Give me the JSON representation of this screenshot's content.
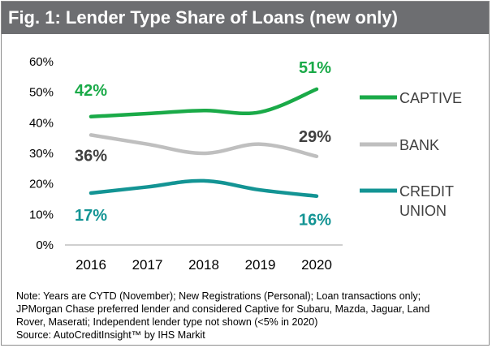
{
  "title": "Fig. 1: Lender Type Share of Loans (new only)",
  "colors": {
    "captive": "#1aaa48",
    "bank": "#bfbfbf",
    "credit_union": "#139494",
    "title_bg": "#6d6e71"
  },
  "chart_data": {
    "type": "line",
    "title": "Fig. 1: Lender Type Share of Loans (new only)",
    "x": [
      "2016",
      "2017",
      "2018",
      "2019",
      "2020"
    ],
    "ylim": [
      0,
      60
    ],
    "yticks": [
      "0%",
      "10%",
      "20%",
      "30%",
      "40%",
      "50%",
      "60%"
    ],
    "grid": false,
    "legend": "right",
    "series": [
      {
        "name": "CAPTIVE",
        "key": "captive",
        "values": [
          42,
          43,
          44,
          43.5,
          51
        ],
        "labels": [
          "42%",
          "51%"
        ]
      },
      {
        "name": "BANK",
        "key": "bank",
        "values": [
          36,
          33,
          30,
          33,
          29
        ],
        "labels": [
          "36%",
          "29%"
        ]
      },
      {
        "name": "CREDIT UNION",
        "key": "credit_union",
        "legend_lines": [
          "CREDIT",
          "UNION"
        ],
        "values": [
          17,
          19,
          21,
          18,
          16
        ],
        "labels": [
          "17%",
          "16%"
        ]
      }
    ]
  },
  "notes": [
    "Note: Years are CYTD (November); New Registrations (Personal); Loan transactions only;",
    "JPMorgan Chase preferred lender and considered Captive for Subaru, Mazda, Jaguar, Land",
    "Rover, Maserati; Independent lender type not shown (<5% in 2020)",
    "Source: AutoCreditInsight™ by IHS Markit"
  ]
}
